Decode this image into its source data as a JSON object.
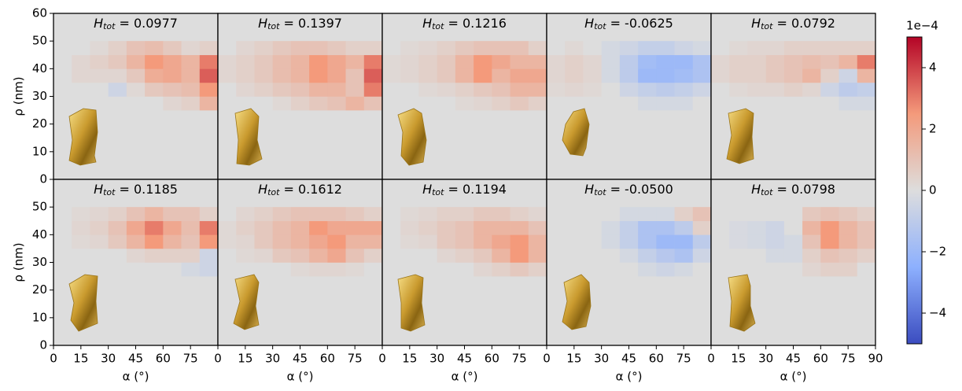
{
  "chart_data": [
    {
      "type": "heatmap",
      "title": {
        "symbol": "H",
        "subscript": "tot",
        "value": "= 0.0977"
      },
      "ylabel": "ρ (nm)",
      "xlim": [
        0,
        90
      ],
      "ylim": [
        0,
        60
      ],
      "yticks": [
        0,
        10,
        20,
        30,
        40,
        50,
        60
      ],
      "xbins": [
        0,
        10,
        20,
        30,
        40,
        50,
        60,
        70,
        80,
        90
      ],
      "ybins": [
        25,
        30,
        35,
        40,
        45,
        50
      ],
      "z": [
        [
          0,
          0,
          0,
          0,
          0,
          0,
          0.3,
          0.5,
          1.5
        ],
        [
          0,
          0,
          0,
          -0.5,
          0.2,
          0.8,
          1,
          1.2,
          2.5
        ],
        [
          0,
          0.3,
          0.3,
          0.3,
          0.8,
          1.8,
          2,
          1.5,
          3.5
        ],
        [
          0,
          0.3,
          0.5,
          0.8,
          1.5,
          2.5,
          2,
          1.5,
          3
        ],
        [
          0,
          0,
          0.2,
          0.5,
          1,
          1.2,
          0.8,
          0.3,
          0.5
        ]
      ]
    },
    {
      "type": "heatmap",
      "title": {
        "symbol": "H",
        "subscript": "tot",
        "value": "= 0.1397"
      },
      "xlim": [
        0,
        90
      ],
      "ylim": [
        0,
        60
      ],
      "xbins": [
        0,
        10,
        20,
        30,
        40,
        50,
        60,
        70,
        80,
        90
      ],
      "ybins": [
        25,
        30,
        35,
        40,
        45,
        50
      ],
      "z": [
        [
          0,
          0,
          0,
          0.2,
          0.5,
          0.8,
          1,
          1.5,
          1
        ],
        [
          0,
          0.3,
          0.5,
          0.8,
          1,
          1.5,
          1.5,
          1,
          3
        ],
        [
          0.3,
          0.5,
          0.8,
          1.2,
          1.5,
          2.5,
          2,
          1,
          3.5
        ],
        [
          0.3,
          0.5,
          0.8,
          1.2,
          1.5,
          2.5,
          2,
          1.5,
          3
        ],
        [
          0,
          0.3,
          0.5,
          0.8,
          1,
          1,
          0.8,
          0.5,
          0.5
        ]
      ]
    },
    {
      "type": "heatmap",
      "title": {
        "symbol": "H",
        "subscript": "tot",
        "value": "= 0.1216"
      },
      "xlim": [
        0,
        90
      ],
      "ylim": [
        0,
        60
      ],
      "xbins": [
        0,
        10,
        20,
        30,
        40,
        50,
        60,
        70,
        80,
        90
      ],
      "ybins": [
        25,
        30,
        35,
        40,
        45,
        50
      ],
      "z": [
        [
          0,
          0,
          0,
          0,
          0.2,
          0.3,
          0.5,
          0.8,
          0.5
        ],
        [
          0,
          0,
          0.2,
          0.3,
          0.5,
          0.8,
          1,
          1.5,
          1.5
        ],
        [
          0.2,
          0.3,
          0.5,
          0.8,
          1.5,
          2.5,
          1.5,
          2,
          2
        ],
        [
          0.2,
          0.3,
          0.5,
          0.8,
          1.5,
          2.5,
          2,
          1.5,
          1.5
        ],
        [
          0,
          0.2,
          0.3,
          0.5,
          0.8,
          1,
          1,
          1,
          0.5
        ]
      ]
    },
    {
      "type": "heatmap",
      "title": {
        "symbol": "H",
        "subscript": "tot",
        "value": "= -0.0625"
      },
      "xlim": [
        0,
        90
      ],
      "ylim": [
        0,
        60
      ],
      "xbins": [
        0,
        10,
        20,
        30,
        40,
        50,
        60,
        70,
        80,
        90
      ],
      "ybins": [
        25,
        30,
        35,
        40,
        45,
        50
      ],
      "z": [
        [
          0,
          0,
          0,
          0,
          0,
          -0.3,
          -0.3,
          -0.3,
          0
        ],
        [
          0.2,
          0.3,
          0.2,
          0,
          -0.5,
          -0.8,
          -1,
          -0.8,
          -0.5
        ],
        [
          0.3,
          0.5,
          0.3,
          -0.3,
          -1,
          -2,
          -2,
          -1.8,
          -1.5
        ],
        [
          0.3,
          0.5,
          0.3,
          -0.3,
          -1,
          -1.8,
          -2,
          -2,
          -1.5
        ],
        [
          0,
          0.2,
          0,
          -0.3,
          -0.5,
          -0.8,
          -0.8,
          -0.5,
          -0.3
        ]
      ]
    },
    {
      "type": "heatmap",
      "title": {
        "symbol": "H",
        "subscript": "tot",
        "value": "= 0.0792"
      },
      "xlim": [
        0,
        90
      ],
      "ylim": [
        0,
        60
      ],
      "xbins": [
        0,
        10,
        20,
        30,
        40,
        50,
        60,
        70,
        80,
        90
      ],
      "ybins": [
        25,
        30,
        35,
        40,
        45,
        50
      ],
      "z": [
        [
          0,
          0,
          0,
          0,
          0,
          0,
          0,
          -0.3,
          -0.3
        ],
        [
          0,
          0.2,
          0.3,
          0.3,
          0.5,
          0.3,
          -0.5,
          -1,
          -0.8
        ],
        [
          0.3,
          0.5,
          0.5,
          0.8,
          1,
          1.5,
          0.5,
          -0.5,
          1.5
        ],
        [
          0.3,
          0.5,
          0.5,
          0.8,
          1,
          1.2,
          1,
          1.5,
          3
        ],
        [
          0,
          0.2,
          0.3,
          0.3,
          0.5,
          0.5,
          0.5,
          0.5,
          0.5
        ]
      ]
    },
    {
      "type": "heatmap",
      "title": {
        "symbol": "H",
        "subscript": "tot",
        "value": "= 0.1185"
      },
      "ylabel": "ρ (nm)",
      "xlabel": "α (°)",
      "xlim": [
        0,
        90
      ],
      "ylim": [
        0,
        60
      ],
      "yticks": [
        0,
        10,
        20,
        30,
        40,
        50
      ],
      "xticks": [
        0,
        15,
        30,
        45,
        60,
        75
      ],
      "xbins": [
        0,
        10,
        20,
        30,
        40,
        50,
        60,
        70,
        80,
        90
      ],
      "ybins": [
        25,
        30,
        35,
        40,
        45,
        50
      ],
      "z": [
        [
          0,
          0,
          0,
          0,
          0,
          0,
          0,
          -0.3,
          -0.5
        ],
        [
          0,
          0,
          0,
          0,
          0.3,
          0.5,
          0.5,
          0.5,
          -0.5
        ],
        [
          0,
          0.2,
          0.3,
          0.8,
          1.5,
          2.5,
          1.5,
          1,
          2.5
        ],
        [
          0,
          0.3,
          0.5,
          1,
          2,
          3,
          2,
          1.2,
          3
        ],
        [
          0,
          0.2,
          0.3,
          0.5,
          1,
          1.5,
          1,
          1,
          0.5
        ]
      ]
    },
    {
      "type": "heatmap",
      "title": {
        "symbol": "H",
        "subscript": "tot",
        "value": "= 0.1612"
      },
      "xlabel": "α (°)",
      "xlim": [
        0,
        90
      ],
      "ylim": [
        0,
        60
      ],
      "xticks": [
        0,
        15,
        30,
        45,
        60,
        75
      ],
      "xbins": [
        0,
        10,
        20,
        30,
        40,
        50,
        60,
        70,
        80,
        90
      ],
      "ybins": [
        25,
        30,
        35,
        40,
        45,
        50
      ],
      "z": [
        [
          0,
          0,
          0,
          0,
          0.2,
          0.3,
          0.3,
          0.2,
          0
        ],
        [
          0,
          0.2,
          0.3,
          0.8,
          1,
          1.5,
          2,
          1,
          0.5
        ],
        [
          0.2,
          0.3,
          0.8,
          1.2,
          1.5,
          2,
          2.5,
          1.5,
          1.5
        ],
        [
          0.2,
          0.5,
          0.8,
          1.2,
          1.5,
          2.5,
          2,
          2,
          2
        ],
        [
          0,
          0.3,
          0.5,
          0.8,
          1,
          1,
          1,
          0.8,
          0.5
        ]
      ]
    },
    {
      "type": "heatmap",
      "title": {
        "symbol": "H",
        "subscript": "tot",
        "value": "= 0.1194"
      },
      "xlabel": "α (°)",
      "xlim": [
        0,
        90
      ],
      "ylim": [
        0,
        60
      ],
      "xticks": [
        0,
        15,
        30,
        45,
        60,
        75
      ],
      "xbins": [
        0,
        10,
        20,
        30,
        40,
        50,
        60,
        70,
        80,
        90
      ],
      "ybins": [
        25,
        30,
        35,
        40,
        45,
        50
      ],
      "z": [
        [
          0,
          0,
          0,
          0,
          0,
          0.3,
          0.5,
          0.8,
          0.5
        ],
        [
          0,
          0,
          0,
          0.3,
          0.5,
          0.8,
          1.5,
          2.5,
          1.5
        ],
        [
          0,
          0.2,
          0.3,
          0.8,
          1,
          1.5,
          2,
          2.5,
          1.5
        ],
        [
          0,
          0.3,
          0.5,
          0.8,
          1,
          1.5,
          1.5,
          1.5,
          1
        ],
        [
          0,
          0.2,
          0.3,
          0.5,
          0.5,
          0.8,
          0.8,
          0.5,
          0.3
        ]
      ]
    },
    {
      "type": "heatmap",
      "title": {
        "symbol": "H",
        "subscript": "tot",
        "value": "= -0.0500"
      },
      "xlabel": "α (°)",
      "xlim": [
        0,
        90
      ],
      "ylim": [
        0,
        60
      ],
      "xticks": [
        0,
        15,
        30,
        45,
        60,
        75
      ],
      "xbins": [
        0,
        10,
        20,
        30,
        40,
        50,
        60,
        70,
        80,
        90
      ],
      "ybins": [
        25,
        30,
        35,
        40,
        45,
        50
      ],
      "z": [
        [
          0,
          0,
          0,
          0,
          0,
          -0.3,
          -0.5,
          -0.3,
          0
        ],
        [
          0,
          0,
          0,
          0,
          -0.3,
          -0.8,
          -1.2,
          -1.5,
          -0.5
        ],
        [
          0,
          0,
          0,
          -0.3,
          -0.8,
          -1.5,
          -2,
          -2,
          -1
        ],
        [
          0,
          0,
          0,
          -0.3,
          -0.8,
          -1.5,
          -1.5,
          -1,
          0.5
        ],
        [
          0,
          0,
          0,
          0,
          -0.3,
          -0.3,
          -0.3,
          0.5,
          1
        ]
      ]
    },
    {
      "type": "heatmap",
      "title": {
        "symbol": "H",
        "subscript": "tot",
        "value": "= 0.0798"
      },
      "xlabel": "α (°)",
      "xlim": [
        0,
        90
      ],
      "ylim": [
        0,
        60
      ],
      "xticks": [
        0,
        15,
        30,
        45,
        60,
        75,
        90
      ],
      "xbins": [
        0,
        10,
        20,
        30,
        40,
        50,
        60,
        70,
        80,
        90
      ],
      "ybins": [
        25,
        30,
        35,
        40,
        45,
        50
      ],
      "z": [
        [
          0,
          0,
          0,
          0,
          0,
          0.3,
          0.5,
          0.5,
          0
        ],
        [
          0,
          0,
          0,
          -0.3,
          -0.3,
          0.5,
          1,
          0.8,
          0.5
        ],
        [
          0,
          -0.2,
          -0.3,
          -0.5,
          -0.3,
          1,
          2.5,
          1.5,
          1
        ],
        [
          0,
          -0.2,
          -0.3,
          -0.5,
          0,
          1.5,
          2.5,
          1.5,
          1
        ],
        [
          0,
          0,
          0,
          0,
          0,
          0.8,
          1,
          0.8,
          0.5
        ]
      ]
    },
    {
      "type": "colorbar",
      "offset_label": "1e−4",
      "clim": [
        -5,
        5
      ],
      "ticks": [
        {
          "value": -4,
          "label": "−4"
        },
        {
          "value": -2,
          "label": "−2"
        },
        0,
        2,
        4
      ]
    }
  ]
}
